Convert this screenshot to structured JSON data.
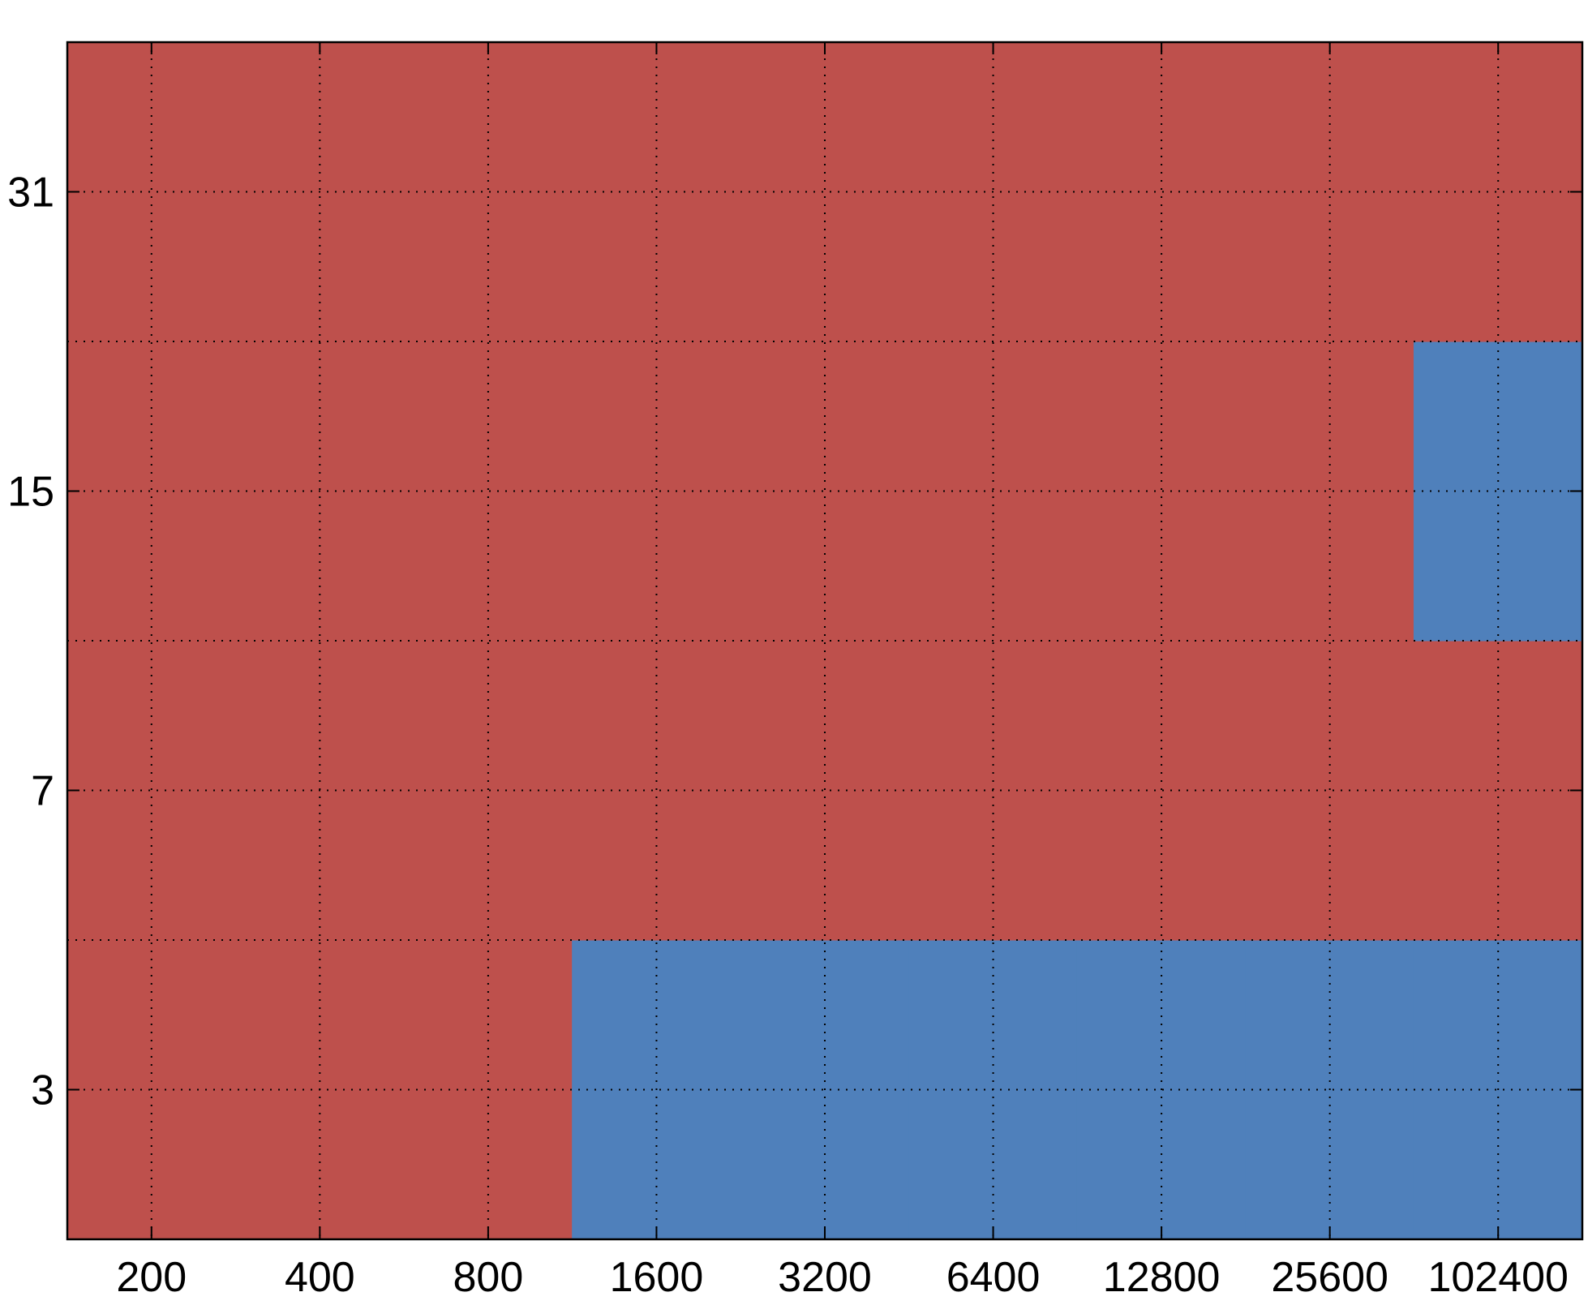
{
  "chart_data": {
    "type": "heatmap",
    "title": "",
    "xlabel": "",
    "ylabel": "",
    "x_categories": [
      "200",
      "400",
      "800",
      "1600",
      "3200",
      "6400",
      "12800",
      "25600",
      "102400"
    ],
    "y_categories": [
      "3",
      "7",
      "15",
      "31"
    ],
    "cell_values": [
      [
        "red",
        "red",
        "red",
        "blue",
        "blue",
        "blue",
        "blue",
        "blue",
        "blue"
      ],
      [
        "red",
        "red",
        "red",
        "red",
        "red",
        "red",
        "red",
        "red",
        "red"
      ],
      [
        "red",
        "red",
        "red",
        "red",
        "red",
        "red",
        "red",
        "red",
        "blue"
      ],
      [
        "red",
        "red",
        "red",
        "red",
        "red",
        "red",
        "red",
        "red",
        "red"
      ]
    ],
    "grid": true,
    "legend": "none",
    "colors": {
      "red": "#be504c",
      "blue": "#4f80bb"
    }
  }
}
